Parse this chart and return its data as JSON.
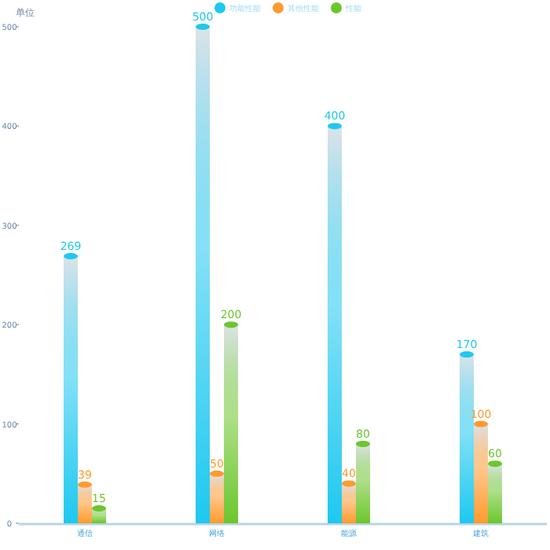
{
  "chart_data": {
    "type": "bar",
    "ylabel": "单位",
    "categories": [
      "通信",
      "网络",
      "能源",
      "建筑"
    ],
    "series": [
      {
        "name": "功能性能",
        "color": "#1ec8f0",
        "values": [
          269,
          500,
          400,
          170
        ]
      },
      {
        "name": "其他性能",
        "color": "#ff9a2e",
        "values": [
          39,
          50,
          40,
          100
        ]
      },
      {
        "name": "性能",
        "color": "#6cc62c",
        "values": [
          15,
          200,
          80,
          60
        ]
      }
    ],
    "ylim": [
      0,
      500
    ],
    "yticks": [
      0,
      100,
      200,
      300,
      400,
      500
    ],
    "grid": false,
    "legend": "top",
    "data_labels": true
  }
}
